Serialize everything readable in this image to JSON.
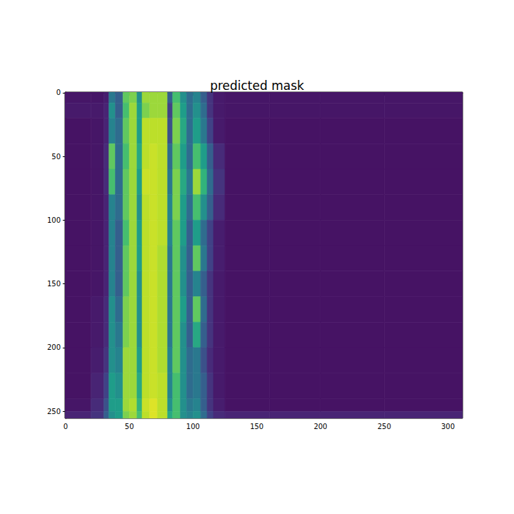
{
  "chart_data": {
    "type": "heatmap",
    "title": "predicted mask",
    "xlim": [
      -0.5,
      311.5
    ],
    "ylim": [
      255.5,
      -0.5
    ],
    "xticks": [
      0,
      50,
      100,
      150,
      200,
      250,
      300
    ],
    "yticks": [
      0,
      50,
      100,
      150,
      200,
      250
    ],
    "grid": false,
    "clim": [
      0,
      1
    ],
    "x_edges": [
      -0.5,
      20,
      30,
      34,
      39,
      45,
      50,
      56,
      60,
      66,
      72,
      80,
      84,
      90,
      95,
      100,
      106,
      111,
      116,
      125,
      160,
      200,
      250,
      311.5
    ],
    "y_edges": [
      -0.5,
      8,
      20,
      40,
      60,
      80,
      100,
      120,
      140,
      160,
      180,
      200,
      220,
      240,
      250,
      255.5
    ],
    "cells": [
      [
        0.06,
        0.06,
        0.08,
        0.4,
        0.3,
        0.75,
        0.8,
        0.5,
        0.85,
        0.85,
        0.85,
        0.3,
        0.7,
        0.5,
        0.35,
        0.45,
        0.3,
        0.15,
        0.07,
        0.06,
        0.06,
        0.06,
        0.06
      ],
      [
        0.07,
        0.07,
        0.1,
        0.5,
        0.3,
        0.7,
        0.85,
        0.55,
        0.8,
        0.85,
        0.85,
        0.2,
        0.75,
        0.55,
        0.35,
        0.5,
        0.35,
        0.15,
        0.07,
        0.06,
        0.06,
        0.06,
        0.06
      ],
      [
        0.05,
        0.06,
        0.1,
        0.45,
        0.35,
        0.75,
        0.85,
        0.55,
        0.9,
        0.9,
        0.9,
        0.25,
        0.8,
        0.6,
        0.35,
        0.55,
        0.4,
        0.2,
        0.07,
        0.05,
        0.05,
        0.05,
        0.05
      ],
      [
        0.05,
        0.06,
        0.12,
        0.75,
        0.35,
        0.7,
        0.85,
        0.6,
        0.9,
        0.92,
        0.9,
        0.35,
        0.75,
        0.55,
        0.35,
        0.7,
        0.55,
        0.3,
        0.12,
        0.05,
        0.05,
        0.05,
        0.05
      ],
      [
        0.05,
        0.06,
        0.12,
        0.7,
        0.35,
        0.75,
        0.85,
        0.55,
        0.92,
        0.92,
        0.9,
        0.4,
        0.8,
        0.6,
        0.4,
        0.85,
        0.65,
        0.35,
        0.15,
        0.05,
        0.05,
        0.05,
        0.05
      ],
      [
        0.05,
        0.06,
        0.1,
        0.45,
        0.35,
        0.75,
        0.85,
        0.5,
        0.9,
        0.92,
        0.9,
        0.45,
        0.8,
        0.55,
        0.35,
        0.7,
        0.5,
        0.3,
        0.12,
        0.05,
        0.05,
        0.05,
        0.05
      ],
      [
        0.05,
        0.06,
        0.1,
        0.45,
        0.3,
        0.7,
        0.85,
        0.55,
        0.9,
        0.92,
        0.9,
        0.45,
        0.75,
        0.55,
        0.3,
        0.55,
        0.35,
        0.2,
        0.08,
        0.05,
        0.05,
        0.05,
        0.05
      ],
      [
        0.05,
        0.06,
        0.1,
        0.45,
        0.3,
        0.75,
        0.85,
        0.55,
        0.9,
        0.92,
        0.88,
        0.4,
        0.75,
        0.5,
        0.3,
        0.75,
        0.4,
        0.2,
        0.08,
        0.05,
        0.05,
        0.05,
        0.05
      ],
      [
        0.05,
        0.06,
        0.1,
        0.45,
        0.3,
        0.75,
        0.85,
        0.5,
        0.9,
        0.92,
        0.88,
        0.4,
        0.75,
        0.5,
        0.3,
        0.45,
        0.3,
        0.15,
        0.07,
        0.05,
        0.05,
        0.05,
        0.05
      ],
      [
        0.05,
        0.07,
        0.12,
        0.5,
        0.35,
        0.8,
        0.85,
        0.5,
        0.9,
        0.92,
        0.88,
        0.4,
        0.75,
        0.55,
        0.3,
        0.75,
        0.35,
        0.15,
        0.07,
        0.05,
        0.05,
        0.05,
        0.05
      ],
      [
        0.05,
        0.07,
        0.12,
        0.5,
        0.4,
        0.8,
        0.85,
        0.5,
        0.9,
        0.92,
        0.88,
        0.4,
        0.75,
        0.5,
        0.3,
        0.6,
        0.3,
        0.15,
        0.07,
        0.05,
        0.05,
        0.05,
        0.05
      ],
      [
        0.05,
        0.08,
        0.15,
        0.5,
        0.45,
        0.85,
        0.85,
        0.55,
        0.9,
        0.92,
        0.88,
        0.45,
        0.75,
        0.5,
        0.35,
        0.4,
        0.25,
        0.12,
        0.07,
        0.05,
        0.05,
        0.05,
        0.05
      ],
      [
        0.05,
        0.1,
        0.2,
        0.55,
        0.5,
        0.85,
        0.85,
        0.6,
        0.9,
        0.92,
        0.9,
        0.45,
        0.7,
        0.5,
        0.35,
        0.4,
        0.3,
        0.15,
        0.07,
        0.05,
        0.05,
        0.05,
        0.05
      ],
      [
        0.06,
        0.12,
        0.25,
        0.55,
        0.55,
        0.85,
        0.88,
        0.65,
        0.92,
        0.95,
        0.9,
        0.5,
        0.7,
        0.5,
        0.4,
        0.45,
        0.3,
        0.15,
        0.08,
        0.05,
        0.05,
        0.05,
        0.05
      ],
      [
        0.1,
        0.15,
        0.3,
        0.5,
        0.55,
        0.8,
        0.85,
        0.7,
        0.9,
        0.95,
        0.9,
        0.6,
        0.7,
        0.5,
        0.45,
        0.5,
        0.35,
        0.2,
        0.12,
        0.1,
        0.1,
        0.1,
        0.1
      ]
    ]
  }
}
